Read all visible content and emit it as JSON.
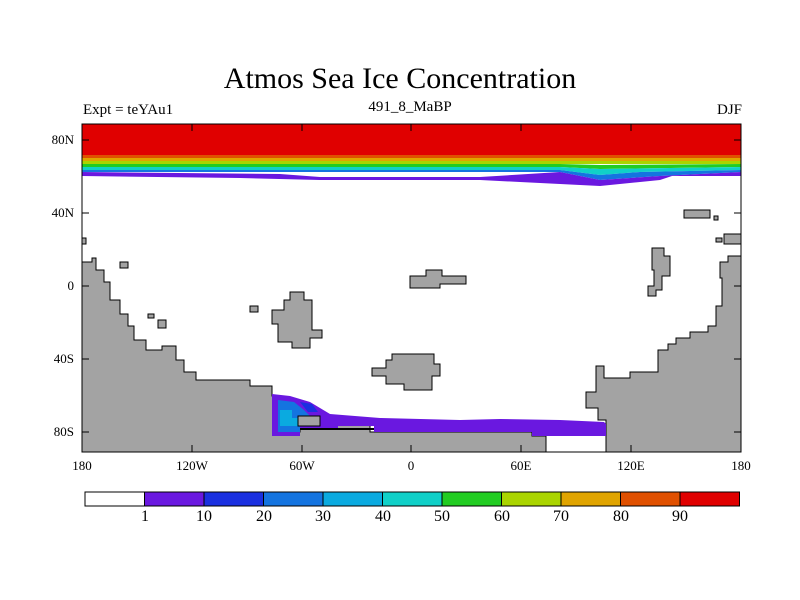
{
  "title": "Atmos Sea Ice Concentration",
  "subtitle": "491_8_MaBP",
  "left_label": "Expt = teYAu1",
  "right_label": "DJF",
  "lat_ticks": [
    "80N",
    "40N",
    "0",
    "40S",
    "80S"
  ],
  "lon_ticks": [
    "180",
    "120W",
    "60W",
    "0",
    "60E",
    "120E",
    "180"
  ],
  "colorbar": {
    "labels": [
      "1",
      "10",
      "20",
      "30",
      "40",
      "50",
      "60",
      "70",
      "80",
      "90"
    ],
    "colors": [
      "#ffffff",
      "#6a18e0",
      "#1a30e0",
      "#1474e0",
      "#0aaae0",
      "#10d0c8",
      "#22cc22",
      "#aad400",
      "#e0a400",
      "#e05000",
      "#e00000"
    ]
  },
  "colors": {
    "land": "#a3a3a3",
    "ice_full": "#e00000"
  }
}
